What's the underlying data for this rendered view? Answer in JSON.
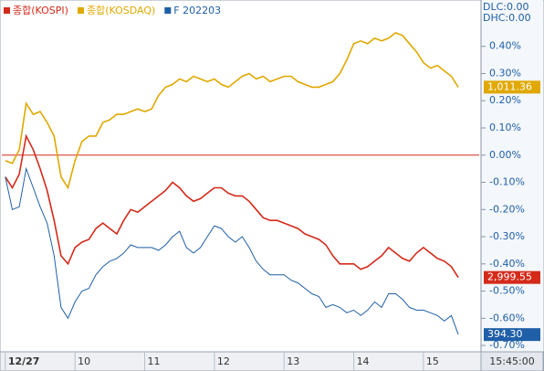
{
  "chart_data": {
    "type": "line",
    "legend": [
      "종합(KOSPI)",
      "종합(KOSDAQ)",
      "F 202203"
    ],
    "top_right_labels": [
      "DLC:0.00",
      "DHC:0.00"
    ],
    "time_label": "15:45:00",
    "reference_line": 0,
    "x": [
      9.0,
      9.1,
      9.2,
      9.3,
      9.4,
      9.5,
      9.6,
      9.7,
      9.8,
      9.9,
      10.0,
      10.1,
      10.2,
      10.3,
      10.4,
      10.5,
      10.6,
      10.7,
      10.8,
      10.9,
      11.0,
      11.1,
      11.2,
      11.3,
      11.4,
      11.5,
      11.6,
      11.7,
      11.8,
      11.9,
      12.0,
      12.1,
      12.2,
      12.3,
      12.4,
      12.5,
      12.6,
      12.7,
      12.8,
      12.9,
      13.0,
      13.1,
      13.2,
      13.3,
      13.4,
      13.5,
      13.6,
      13.7,
      13.8,
      13.9,
      14.0,
      14.1,
      14.2,
      14.3,
      14.4,
      14.5,
      14.6,
      14.7,
      14.8,
      14.9,
      15.0,
      15.1,
      15.2,
      15.3,
      15.4,
      15.5
    ],
    "xlim": [
      8.95,
      15.8
    ],
    "xticks": [
      {
        "value": 9,
        "label": "12/27"
      },
      10,
      11,
      12,
      13,
      14,
      15
    ],
    "ylim": [
      -0.72,
      0.51
    ],
    "yticks": [
      {
        "value": 0.4,
        "label": "0.40%"
      },
      {
        "value": 0.3,
        "label": "0.30%"
      },
      {
        "value": 0.2,
        "label": "0.20%"
      },
      {
        "value": 0.1,
        "label": "0.10%"
      },
      {
        "value": 0,
        "label": "0.00%"
      },
      {
        "value": -0.1,
        "label": "-0.10%"
      },
      {
        "value": -0.2,
        "label": "-0.20%"
      },
      {
        "value": -0.3,
        "label": "-0.30%"
      },
      {
        "value": -0.4,
        "label": "-0.40%"
      },
      {
        "value": -0.5,
        "label": "-0.50%"
      },
      {
        "value": -0.6,
        "label": "-0.60%"
      },
      {
        "value": -0.7,
        "label": "-0.70%"
      }
    ],
    "series": [
      {
        "name": "종합(KOSDAQ)",
        "color": "#e0a800",
        "price_label": "1,011.36",
        "values": [
          -0.02,
          -0.03,
          0.02,
          0.19,
          0.15,
          0.16,
          0.12,
          0.07,
          -0.08,
          -0.12,
          -0.02,
          0.05,
          0.07,
          0.07,
          0.12,
          0.13,
          0.15,
          0.15,
          0.16,
          0.17,
          0.16,
          0.17,
          0.22,
          0.25,
          0.26,
          0.28,
          0.27,
          0.29,
          0.28,
          0.27,
          0.28,
          0.26,
          0.25,
          0.27,
          0.29,
          0.3,
          0.28,
          0.29,
          0.27,
          0.28,
          0.29,
          0.29,
          0.27,
          0.26,
          0.25,
          0.25,
          0.26,
          0.27,
          0.3,
          0.35,
          0.41,
          0.42,
          0.41,
          0.43,
          0.42,
          0.43,
          0.45,
          0.44,
          0.41,
          0.38,
          0.34,
          0.32,
          0.33,
          0.31,
          0.29,
          0.25
        ]
      },
      {
        "name": "종합(KOSPI)",
        "color": "#d42a1a",
        "price_label": "2,999.55",
        "values": [
          -0.08,
          -0.12,
          -0.07,
          0.07,
          0.02,
          -0.05,
          -0.13,
          -0.24,
          -0.37,
          -0.4,
          -0.34,
          -0.32,
          -0.31,
          -0.27,
          -0.25,
          -0.27,
          -0.29,
          -0.24,
          -0.2,
          -0.21,
          -0.19,
          -0.17,
          -0.15,
          -0.13,
          -0.1,
          -0.12,
          -0.15,
          -0.17,
          -0.16,
          -0.14,
          -0.12,
          -0.12,
          -0.14,
          -0.15,
          -0.15,
          -0.17,
          -0.2,
          -0.23,
          -0.24,
          -0.24,
          -0.25,
          -0.26,
          -0.27,
          -0.29,
          -0.3,
          -0.31,
          -0.33,
          -0.37,
          -0.4,
          -0.4,
          -0.4,
          -0.42,
          -0.41,
          -0.39,
          -0.37,
          -0.34,
          -0.36,
          -0.38,
          -0.39,
          -0.36,
          -0.34,
          -0.36,
          -0.38,
          -0.39,
          -0.41,
          -0.45
        ]
      },
      {
        "name": "F 202203",
        "color": "#1f5fa8",
        "price_label": "394.30",
        "values": [
          -0.08,
          -0.2,
          -0.19,
          -0.05,
          -0.12,
          -0.19,
          -0.25,
          -0.37,
          -0.56,
          -0.6,
          -0.54,
          -0.5,
          -0.49,
          -0.44,
          -0.41,
          -0.39,
          -0.38,
          -0.36,
          -0.33,
          -0.34,
          -0.34,
          -0.34,
          -0.35,
          -0.33,
          -0.3,
          -0.28,
          -0.34,
          -0.36,
          -0.34,
          -0.3,
          -0.26,
          -0.27,
          -0.3,
          -0.32,
          -0.3,
          -0.34,
          -0.39,
          -0.42,
          -0.44,
          -0.44,
          -0.44,
          -0.46,
          -0.47,
          -0.49,
          -0.51,
          -0.52,
          -0.56,
          -0.55,
          -0.56,
          -0.58,
          -0.57,
          -0.59,
          -0.57,
          -0.54,
          -0.56,
          -0.51,
          -0.51,
          -0.53,
          -0.56,
          -0.57,
          -0.57,
          -0.58,
          -0.59,
          -0.61,
          -0.59,
          -0.66
        ]
      }
    ]
  }
}
